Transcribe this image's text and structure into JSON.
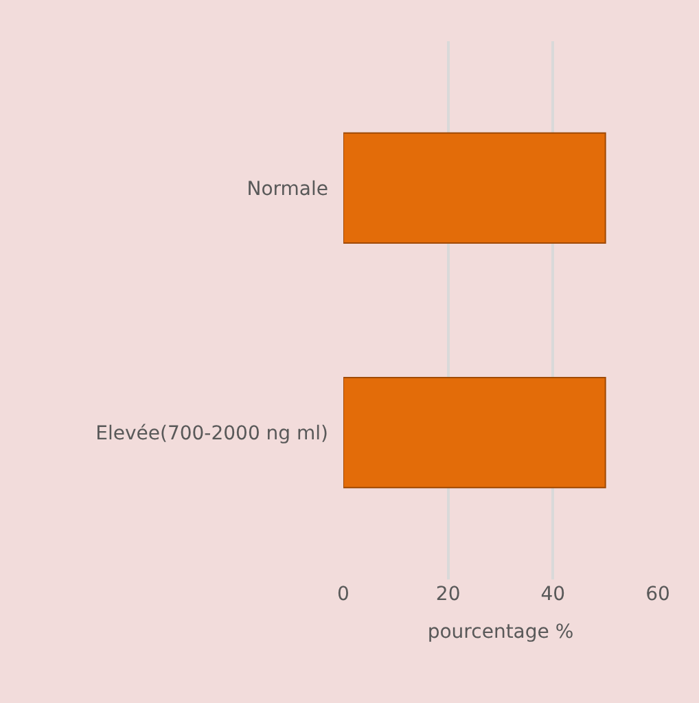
{
  "chart_data": {
    "type": "bar",
    "orientation": "horizontal",
    "categories": [
      "Normale",
      "Elevée(700-2000 ng ml)"
    ],
    "values": [
      50,
      50
    ],
    "color": "#e36c09",
    "xlabel": "pourcentage %",
    "xlim": [
      0,
      60
    ],
    "xticks": [
      0,
      20,
      40,
      60
    ],
    "grid": "x"
  }
}
